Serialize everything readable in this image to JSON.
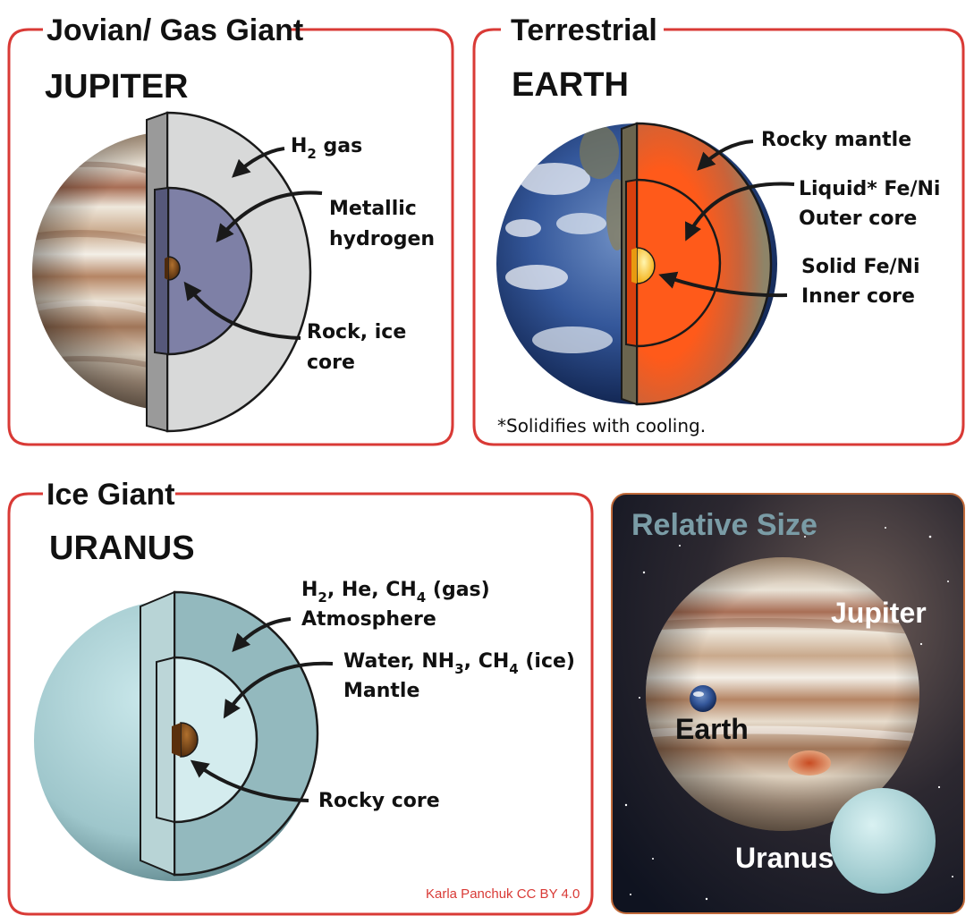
{
  "panels": {
    "jovian": {
      "category": "Jovian/ Gas Giant",
      "planet": "JUPITER",
      "layers": [
        {
          "label_parts": [
            "H",
            "2",
            " gas"
          ]
        },
        {
          "line1": "Metallic",
          "line2": "hydrogen"
        },
        {
          "line1": "Rock, ice",
          "line2": "core"
        }
      ]
    },
    "terrestrial": {
      "category": "Terrestrial",
      "planet": "EARTH",
      "layers": [
        {
          "line1": "Rocky mantle"
        },
        {
          "line1": "Liquid* Fe/Ni",
          "line2": "Outer core"
        },
        {
          "line1": "Solid Fe/Ni",
          "line2": "Inner core"
        }
      ],
      "footnote": "*Solidifies with cooling."
    },
    "ice": {
      "category": "Ice Giant",
      "planet": "URANUS",
      "layers": [
        {
          "line1_parts": [
            "H",
            "2",
            ", He, CH",
            "4",
            " (gas)"
          ],
          "line2": "Atmosphere"
        },
        {
          "line1_parts": [
            "Water, NH",
            "3",
            ", CH",
            "4",
            " (ice)"
          ],
          "line2": "Mantle"
        },
        {
          "line1": "Rocky core"
        }
      ],
      "credit": "Karla Panchuk CC BY 4.0"
    },
    "relative_size": {
      "title": "Relative Size",
      "labels": {
        "jupiter": "Jupiter",
        "earth": "Earth",
        "uranus": "Uranus"
      }
    }
  },
  "colors": {
    "frame": "#d93a36",
    "jupiter_gas": "#d8d9d9",
    "jupiter_metallic": "#7e80a6",
    "earth_mantle": "#8e8468",
    "earth_outer_core": "#ff5a1a",
    "earth_inner_core": "#ffd23a",
    "uranus_atmosphere": "#93b9be",
    "uranus_mantle": "#d4ecee",
    "rock_core": "#7a4518"
  }
}
